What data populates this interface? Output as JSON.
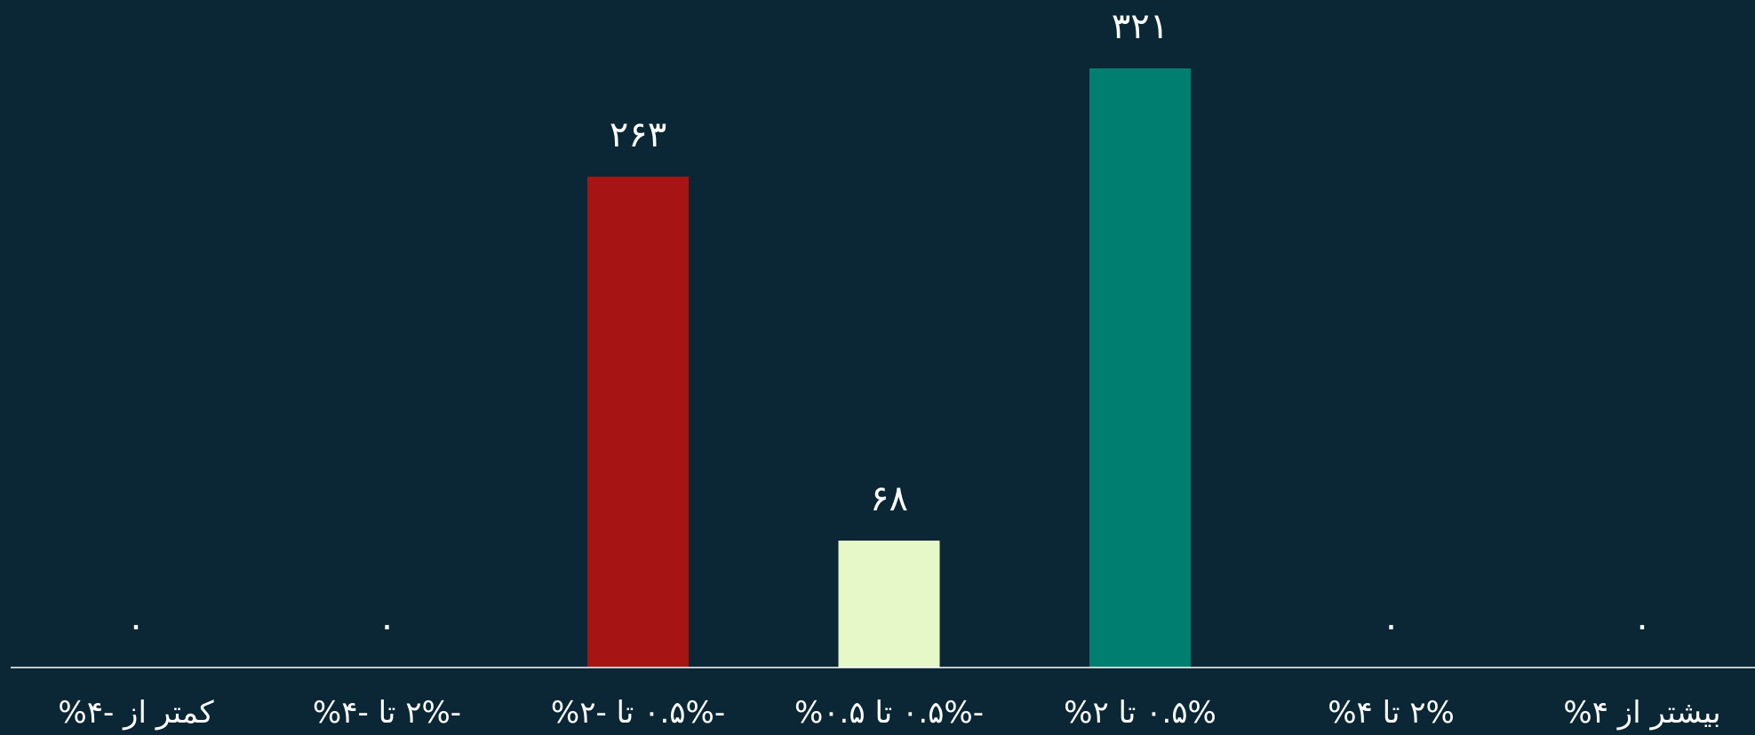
{
  "chart_data": {
    "type": "bar",
    "categories": [
      "کمتر از -۴%",
      "-۲% تا -۴%",
      "-۰.۵% تا -۲%",
      "-۰.۵% تا ۰.۵%",
      "۰.۵% تا ۲%",
      "۲% تا ۴%",
      "بیشتر از ۴%"
    ],
    "values": [
      0,
      0,
      263,
      68,
      321,
      0,
      0
    ],
    "value_labels": [
      "۰",
      "۰",
      "۲۶۳",
      "۶۸",
      "۳۲۱",
      "۰",
      "۰"
    ],
    "bar_colors": [
      "#a61414",
      "#a61414",
      "#a61414",
      "#e6f7c8",
      "#007f70",
      "#007f70",
      "#007f70"
    ],
    "ylim": [
      0,
      321
    ],
    "grid": false,
    "legend": "none"
  },
  "colors": {
    "background": "#0b2735",
    "axis": "#ffffff",
    "text": "#ffffff"
  }
}
